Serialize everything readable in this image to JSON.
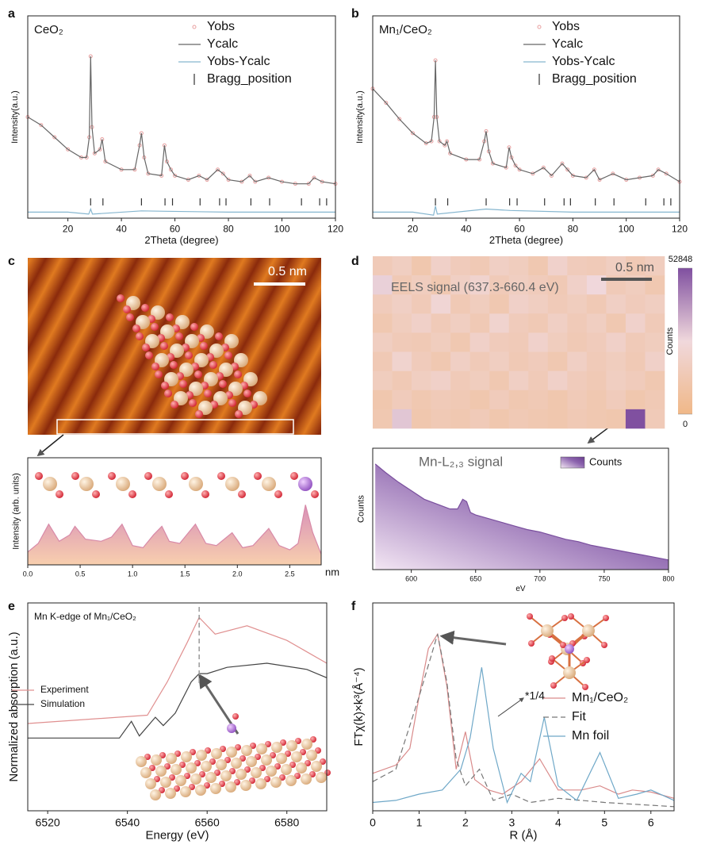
{
  "chart_data": [
    {
      "type": "line",
      "panel": "a",
      "label": "CeO₂",
      "xlabel": "2Theta (degree)",
      "ylabel": "Intensity(a.u.)",
      "xlim": [
        5,
        120
      ],
      "xticks": [
        20,
        40,
        60,
        80,
        100,
        120
      ],
      "ylim": [
        0,
        100
      ],
      "x": [
        5,
        10,
        15,
        20,
        25,
        27,
        28,
        28.5,
        29,
        30,
        32,
        32.8,
        34,
        40,
        45,
        46.8,
        47.5,
        48.5,
        50,
        55,
        56.1,
        57,
        58.5,
        60,
        65,
        69,
        72,
        76,
        78,
        80,
        85,
        88,
        90,
        95,
        100,
        105,
        110,
        112,
        115,
        120
      ],
      "series": [
        {
          "name": "Yobs",
          "color": "#e8a0a0",
          "style": "markers",
          "values": [
            50,
            46,
            40,
            34,
            30,
            30,
            40,
            80,
            45,
            32,
            34,
            39,
            28,
            24,
            24,
            36,
            42,
            30,
            22,
            21,
            36,
            28,
            24,
            21,
            19,
            21,
            19,
            24,
            22,
            19,
            18,
            21,
            18,
            20,
            18,
            17,
            17,
            20,
            18,
            17
          ]
        },
        {
          "name": "Ycalc",
          "color": "#666666",
          "values": [
            50,
            46,
            40,
            34,
            30,
            30,
            40,
            80,
            45,
            32,
            34,
            39,
            28,
            24,
            24,
            36,
            42,
            30,
            22,
            21,
            36,
            28,
            24,
            21,
            19,
            21,
            19,
            24,
            22,
            19,
            18,
            21,
            18,
            20,
            18,
            17,
            17,
            20,
            18,
            17
          ]
        },
        {
          "name": "Yobs-Ycalc",
          "color": "#86b6cf",
          "x": [
            5,
            20,
            27.8,
            28.5,
            29.2,
            47.5,
            56.5,
            80,
            120
          ],
          "values": [
            3,
            3,
            2,
            4.5,
            2,
            3.6,
            3.4,
            3,
            3
          ]
        }
      ],
      "bragg": {
        "name": "Bragg_position",
        "color": "#333333",
        "x": [
          28.5,
          33.1,
          47.5,
          56.3,
          59.1,
          69.4,
          76.7,
          79.1,
          88.4,
          95.4,
          107.3,
          114.1,
          116.7
        ]
      }
    },
    {
      "type": "line",
      "panel": "b",
      "label": "Mn₁/CeO₂",
      "xlabel": "2Theta (degree)",
      "ylabel": "Intensity(a.u.)",
      "xlim": [
        5,
        120
      ],
      "xticks": [
        20,
        40,
        60,
        80,
        100,
        120
      ],
      "ylim": [
        0,
        100
      ],
      "x": [
        5,
        10,
        15,
        20,
        25,
        27,
        28,
        28.5,
        29,
        30,
        32,
        32.8,
        34,
        40,
        45,
        46.8,
        47.5,
        48.5,
        50,
        55,
        56.1,
        57,
        58.5,
        60,
        65,
        69,
        72,
        76,
        78,
        80,
        85,
        88,
        90,
        95,
        100,
        105,
        110,
        112,
        115,
        120
      ],
      "series": [
        {
          "name": "Yobs",
          "color": "#e8a0a0",
          "style": "markers",
          "values": [
            64,
            57,
            49,
            42,
            37,
            38,
            50,
            78,
            50,
            38,
            36,
            38,
            32,
            29,
            29,
            38,
            43,
            33,
            27,
            25,
            35,
            30,
            26,
            24,
            22,
            25,
            21,
            27,
            24,
            21,
            20,
            24,
            19,
            22,
            19,
            20,
            21,
            24,
            22,
            18
          ]
        },
        {
          "name": "Ycalc",
          "color": "#666666",
          "values": [
            64,
            57,
            49,
            42,
            37,
            38,
            50,
            78,
            50,
            38,
            36,
            38,
            32,
            29,
            29,
            38,
            43,
            33,
            27,
            25,
            35,
            30,
            26,
            24,
            22,
            25,
            21,
            27,
            24,
            21,
            20,
            24,
            19,
            22,
            19,
            20,
            21,
            24,
            22,
            18
          ]
        },
        {
          "name": "Yobs-Ycalc",
          "color": "#86b6cf",
          "x": [
            5,
            20,
            27.8,
            28.5,
            29.2,
            47.5,
            56.5,
            80,
            120
          ],
          "values": [
            3,
            3,
            1.5,
            6,
            2,
            4.5,
            3.8,
            3,
            3
          ]
        }
      ],
      "bragg": {
        "name": "Bragg_position",
        "color": "#333333",
        "x": [
          28.5,
          33.1,
          47.5,
          56.3,
          59.1,
          69.4,
          76.7,
          79.1,
          88.4,
          95.4,
          107.3,
          114.1,
          116.7
        ]
      }
    },
    {
      "type": "area",
      "panel": "c",
      "scale_bar": "0.5 nm",
      "ylabel": "Intensity (arb. units)",
      "xunit": "nm",
      "xlim": [
        0,
        2.8
      ],
      "xticks": [
        {
          "value": 0,
          "label": "0.0"
        },
        0.5,
        {
          "value": 1,
          "label": "1.0"
        },
        1.5,
        {
          "value": 2,
          "label": "2.0"
        },
        2.5
      ],
      "ylim": [
        0,
        100
      ],
      "x": [
        0,
        0.1,
        0.2,
        0.3,
        0.4,
        0.45,
        0.55,
        0.7,
        0.8,
        0.9,
        1.0,
        1.1,
        1.2,
        1.28,
        1.35,
        1.45,
        1.6,
        1.7,
        1.8,
        1.95,
        2.05,
        2.15,
        2.3,
        2.4,
        2.5,
        2.58,
        2.65,
        2.72,
        2.8
      ],
      "series": [
        {
          "color": "#d88aa8",
          "values": [
            12,
            20,
            38,
            22,
            28,
            36,
            24,
            22,
            26,
            38,
            18,
            16,
            28,
            36,
            22,
            20,
            38,
            20,
            18,
            30,
            16,
            18,
            34,
            18,
            14,
            20,
            56,
            30,
            10
          ]
        }
      ]
    },
    {
      "type": "heatmap",
      "panel": "d",
      "map_label": "EELS signal (637.3-660.4 eV)",
      "scale_bar": "0.5 nm",
      "colorbar_label": "Counts",
      "clim": [
        0,
        52848
      ],
      "cticks": [
        0,
        52848
      ],
      "values": [
        [
          15000,
          18000,
          12000,
          20000,
          16000,
          14000,
          19000,
          17000,
          13000,
          21000,
          16000,
          15000,
          18000,
          14000,
          17000
        ],
        [
          28000,
          14000,
          17000,
          13000,
          19000,
          22000,
          15000,
          18000,
          16000,
          14000,
          20000,
          26000,
          15000,
          17000,
          13000
        ],
        [
          16000,
          19000,
          15000,
          24000,
          14000,
          17000,
          13000,
          20000,
          18000,
          15000,
          17000,
          14000,
          19000,
          16000,
          18000
        ],
        [
          13000,
          17000,
          20000,
          15000,
          18000,
          14000,
          22000,
          16000,
          14000,
          19000,
          15000,
          18000,
          13000,
          21000,
          15000
        ],
        [
          18000,
          15000,
          14000,
          17000,
          13000,
          20000,
          16000,
          15000,
          21000,
          17000,
          14000,
          16000,
          20000,
          15000,
          17000
        ],
        [
          14000,
          22000,
          16000,
          13000,
          19000,
          15000,
          18000,
          14000,
          16000,
          13000,
          19000,
          15000,
          17000,
          14000,
          20000
        ],
        [
          17000,
          14000,
          18000,
          20000,
          15000,
          17000,
          13000,
          19000,
          15000,
          20000,
          16000,
          14000,
          18000,
          16000,
          13000
        ],
        [
          12000,
          16000,
          13000,
          15000,
          14000,
          12000,
          16000,
          13000,
          14000,
          12000,
          15000,
          13000,
          16000,
          12000,
          14000
        ],
        [
          13000,
          30000,
          12000,
          14000,
          13000,
          15000,
          12000,
          14000,
          13000,
          12000,
          14000,
          13000,
          12000,
          52848,
          15000
        ]
      ]
    },
    {
      "type": "area",
      "label": "Mn-L₂,₃ signal",
      "ylabel": "Counts",
      "xlabel": "eV",
      "xlim": [
        570,
        800
      ],
      "xticks": [
        600,
        650,
        700,
        750,
        800
      ],
      "ylim": [
        0,
        100
      ],
      "x": [
        572,
        580,
        590,
        600,
        610,
        620,
        630,
        636,
        640,
        643,
        646,
        650,
        660,
        670,
        680,
        690,
        700,
        710,
        720,
        730,
        740,
        750,
        760,
        770,
        780,
        790,
        800
      ],
      "series": [
        {
          "name": "Counts",
          "color": "#7a4f9e",
          "values": [
            87,
            80,
            72,
            65,
            58,
            54,
            50,
            50,
            58,
            56,
            47,
            45,
            42,
            39,
            36,
            33,
            31,
            28,
            25,
            23,
            20,
            18,
            16,
            14,
            12,
            10,
            8
          ]
        }
      ]
    },
    {
      "type": "line",
      "panel": "e",
      "label": "Mn K-edge of Mn₁/CeO₂",
      "xlabel": "Energy (eV)",
      "ylabel": "Normalized absorption (a.u.)",
      "xlim": [
        6515,
        6590
      ],
      "xticks": [
        6520,
        6540,
        6560,
        6580
      ],
      "ylim": [
        0,
        100
      ],
      "reference_line_x": 6558,
      "series": [
        {
          "name": "Experiment",
          "color": "#e09090",
          "x": [
            6515,
            6545,
            6550,
            6555,
            6558,
            6562,
            6570,
            6580,
            6590
          ],
          "values": [
            42,
            46,
            62,
            81,
            93,
            85,
            89,
            82,
            71
          ]
        },
        {
          "name": "Simulation",
          "color": "#444444",
          "x": [
            6515,
            6538,
            6541,
            6543,
            6547,
            6549,
            6552,
            6556,
            6558,
            6560,
            6565,
            6575,
            6585,
            6590
          ],
          "values": [
            35,
            35,
            43,
            36,
            45,
            41,
            47,
            62,
            66,
            66,
            69,
            71,
            68,
            64
          ]
        }
      ]
    },
    {
      "type": "line",
      "panel": "f",
      "xlabel": "R (Å)",
      "ylabel": "FTχ(k)×k³(Å⁻⁴)",
      "annotation": "*1/4",
      "xlim": [
        0,
        6.5
      ],
      "xticks": [
        0,
        1,
        2,
        3,
        4,
        5,
        6
      ],
      "ylim": [
        0,
        100
      ],
      "series": [
        {
          "name": "Mn₁/CeO₂",
          "color": "#d98a8a",
          "x": [
            0,
            0.5,
            0.8,
            1.0,
            1.2,
            1.4,
            1.6,
            1.8,
            2.0,
            2.2,
            2.5,
            2.8,
            3.2,
            3.6,
            4.0,
            4.5,
            4.9,
            5.3,
            5.6,
            6.0,
            6.5
          ],
          "values": [
            18,
            22,
            30,
            55,
            78,
            85,
            60,
            20,
            38,
            15,
            10,
            8,
            14,
            25,
            10,
            10,
            12,
            8,
            10,
            9,
            6
          ]
        },
        {
          "name": "Fit",
          "color": "#777777",
          "style": "dashed",
          "x": [
            0,
            0.5,
            1.0,
            1.4,
            1.6,
            1.8,
            2.0,
            2.3,
            2.6,
            3.0,
            3.4,
            4.0,
            5.0,
            6.5
          ],
          "values": [
            14,
            20,
            55,
            85,
            62,
            25,
            12,
            20,
            5,
            8,
            4,
            6,
            4,
            2
          ]
        },
        {
          "name": "Mn foil",
          "color": "#6fa8c8",
          "x": [
            0,
            0.5,
            1.0,
            1.5,
            1.9,
            2.1,
            2.35,
            2.6,
            2.9,
            3.2,
            3.4,
            3.7,
            4.0,
            4.4,
            4.9,
            5.3,
            5.7,
            6.0,
            6.5
          ],
          "values": [
            4,
            5,
            8,
            10,
            20,
            35,
            69,
            30,
            4,
            18,
            14,
            45,
            12,
            5,
            28,
            6,
            8,
            10,
            5
          ]
        }
      ]
    }
  ]
}
